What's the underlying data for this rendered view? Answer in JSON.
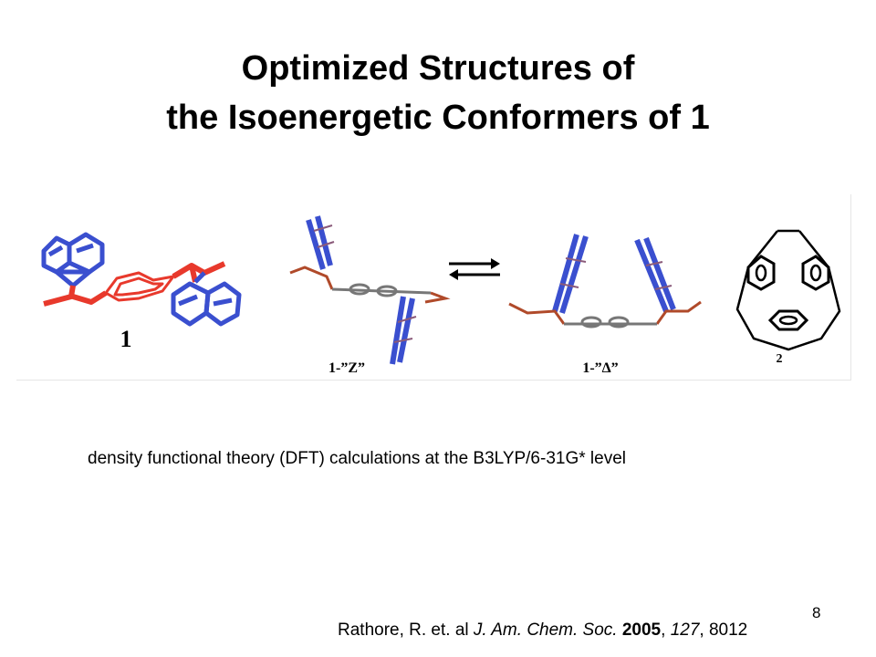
{
  "slide": {
    "title_line1": "Optimized Structures of",
    "title_line2": "the Isoenergetic Conformers of 1",
    "caption": "density functional theory (DFT) calculations at the B3LYP/6-31G* level",
    "page_number": "8"
  },
  "figure": {
    "label_compound_1": "1",
    "label_z": "1-”Z”",
    "label_delta": "1-”Δ”",
    "label_compound_2": "2"
  },
  "reference": {
    "authors": "Rathore, R. et. al ",
    "journal": "J. Am. Chem. Soc.",
    "year": "2005",
    "volume": "127",
    "pages": "8012"
  },
  "colors": {
    "fluorene_blue": "#3a4fcf",
    "linker_red": "#e8392c",
    "text": "#000000"
  }
}
